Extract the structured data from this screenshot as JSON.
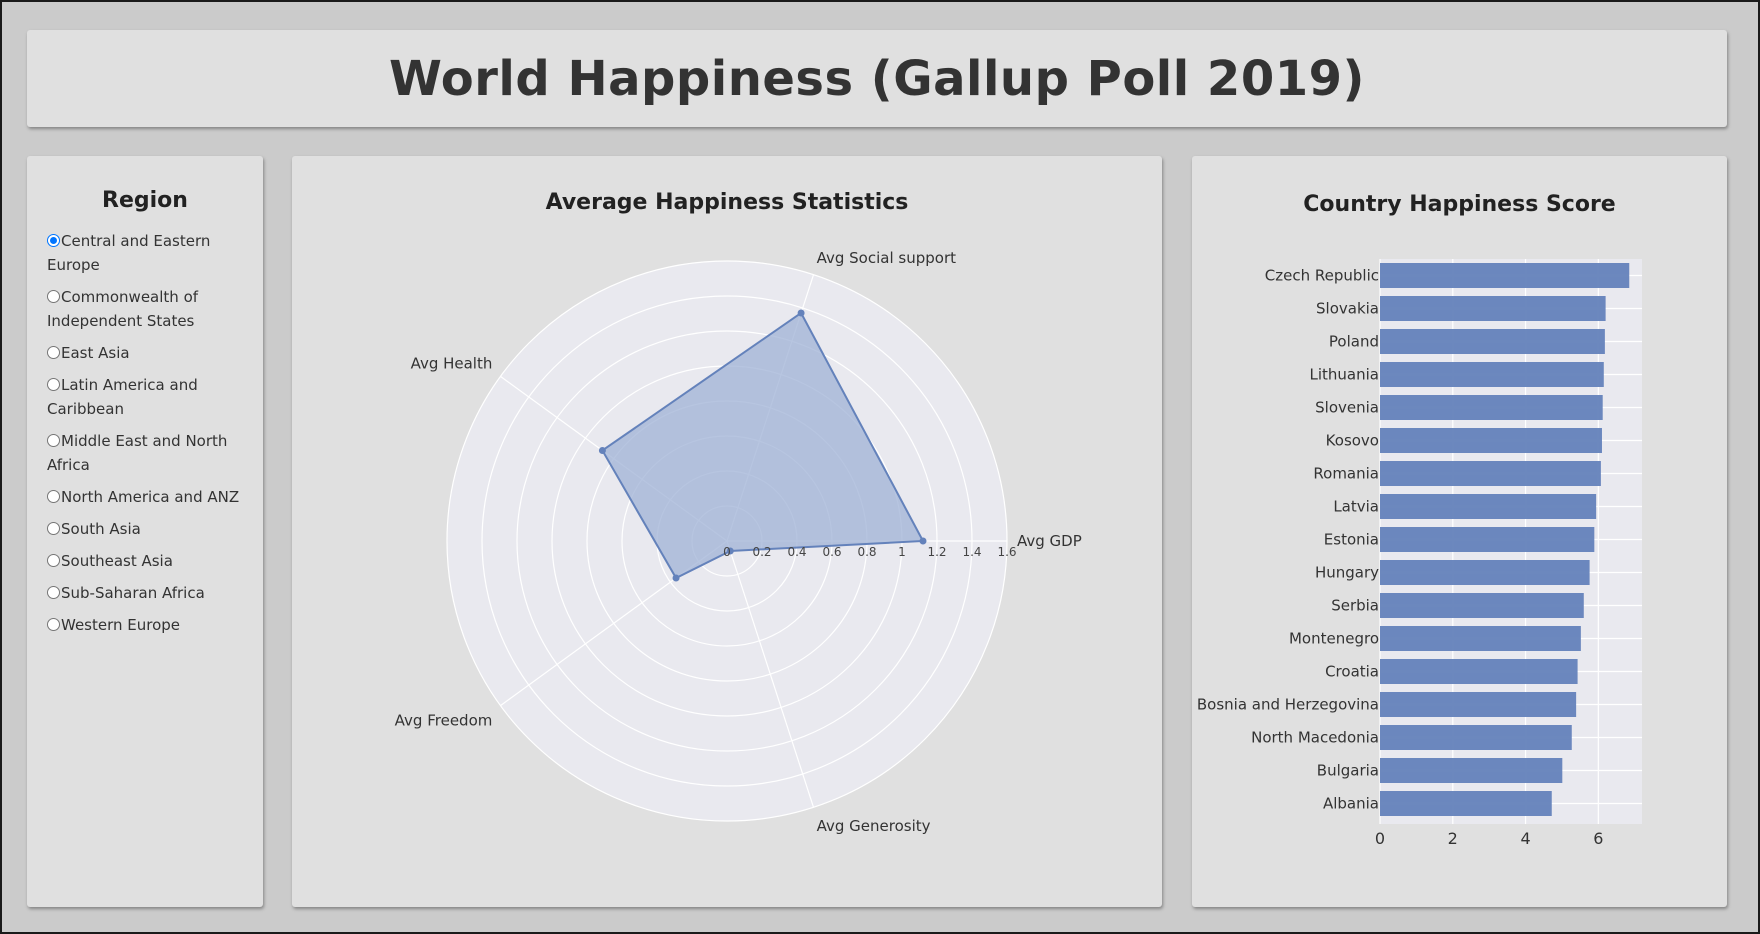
{
  "header": {
    "title": "World Happiness (Gallup Poll 2019)"
  },
  "region_panel": {
    "title": "Region",
    "selected": "Central and Eastern Europe",
    "options": [
      "Central and Eastern Europe",
      "Commonwealth of Independent States",
      "East Asia",
      "Latin America and Caribbean",
      "Middle East and North Africa",
      "North America and ANZ",
      "South Asia",
      "Southeast Asia",
      "Sub-Saharan Africa",
      "Western Europe"
    ]
  },
  "colors": {
    "series": "#6482bb",
    "fill": "#9fb1d6",
    "plot_bg": "#e9e9ef",
    "grid": "#ffffff"
  },
  "chart_data": [
    {
      "type": "radar",
      "title": "Average Happiness Statistics",
      "axes": [
        "Avg GDP",
        "Avg Social support",
        "Avg Health",
        "Avg Freedom",
        "Avg Generosity"
      ],
      "values": [
        1.12,
        1.37,
        0.88,
        0.36,
        0.06
      ],
      "rlim": [
        0,
        1.6
      ],
      "rticks": [
        "0",
        "0.2",
        "0.4",
        "0.6",
        "0.8",
        "1",
        "1.2",
        "1.4",
        "1.6"
      ],
      "grid": true
    },
    {
      "type": "bar",
      "orientation": "horizontal",
      "title": "Country Happiness Score",
      "categories": [
        "Czech Republic",
        "Slovakia",
        "Poland",
        "Lithuania",
        "Slovenia",
        "Kosovo",
        "Romania",
        "Latvia",
        "Estonia",
        "Hungary",
        "Serbia",
        "Montenegro",
        "Croatia",
        "Bosnia and Herzegovina",
        "North Macedonia",
        "Bulgaria",
        "Albania"
      ],
      "values": [
        6.85,
        6.2,
        6.18,
        6.15,
        6.12,
        6.1,
        6.07,
        5.94,
        5.89,
        5.76,
        5.6,
        5.52,
        5.43,
        5.39,
        5.27,
        5.01,
        4.72
      ],
      "xticks": [
        "0",
        "2",
        "4",
        "6"
      ],
      "xlim": [
        0,
        7.2
      ],
      "grid": true
    }
  ]
}
